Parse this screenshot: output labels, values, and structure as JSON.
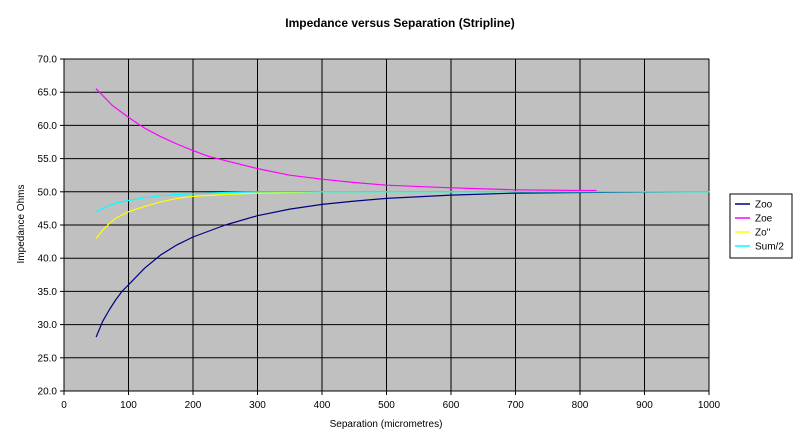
{
  "chart_data": {
    "type": "line",
    "title": "Impedance versus Separation (Stripline)",
    "xlabel": "Separation (micrometres)",
    "ylabel": "Impedance Ohms",
    "xlim": [
      0,
      1000
    ],
    "ylim": [
      20,
      70
    ],
    "x_ticks": [
      0,
      100,
      200,
      300,
      400,
      500,
      600,
      700,
      800,
      900,
      1000
    ],
    "y_ticks": [
      "20.0",
      "25.0",
      "30.0",
      "35.0",
      "40.0",
      "45.0",
      "50.0",
      "55.0",
      "60.0",
      "65.0",
      "70.0"
    ],
    "grid": true,
    "plot_background": "#c0c0c0",
    "legend_position": "right",
    "series": [
      {
        "name": "Zoo",
        "color": "#000080",
        "x": [
          50,
          60,
          70,
          80,
          90,
          100,
          125,
          150,
          175,
          200,
          250,
          300,
          350,
          400,
          450,
          500,
          600,
          700,
          800,
          1000
        ],
        "y": [
          28.2,
          30.5,
          32.2,
          33.7,
          35.0,
          36.0,
          38.5,
          40.5,
          42.0,
          43.2,
          45.0,
          46.4,
          47.4,
          48.1,
          48.6,
          49.0,
          49.5,
          49.8,
          49.9,
          50.0
        ]
      },
      {
        "name": "Zoe",
        "color": "#ff00ff",
        "x": [
          50,
          60,
          75,
          100,
          125,
          150,
          175,
          200,
          225,
          250,
          300,
          350,
          400,
          450,
          500,
          600,
          700,
          800,
          825
        ],
        "y": [
          65.5,
          64.5,
          63.0,
          61.2,
          59.6,
          58.3,
          57.2,
          56.2,
          55.3,
          54.7,
          53.5,
          52.5,
          51.9,
          51.4,
          51.0,
          50.6,
          50.3,
          50.2,
          50.2
        ]
      },
      {
        "name": "Zo''",
        "color": "#ffff00",
        "x": [
          50,
          60,
          70,
          80,
          90,
          100,
          125,
          150,
          175,
          200,
          250,
          300,
          350,
          400,
          450,
          500,
          600,
          700,
          800,
          1000
        ],
        "y": [
          43.0,
          44.2,
          45.2,
          46.0,
          46.5,
          47.0,
          47.8,
          48.5,
          49.0,
          49.3,
          49.6,
          49.8,
          49.9,
          50.0,
          50.0,
          50.0,
          50.0,
          50.0,
          50.0,
          50.0
        ]
      },
      {
        "name": "Sum/2",
        "color": "#00ffff",
        "x": [
          50,
          60,
          70,
          80,
          90,
          100,
          125,
          150,
          175,
          200,
          250,
          300,
          350,
          400,
          450,
          500,
          600,
          700,
          800,
          1000
        ],
        "y": [
          47.0,
          47.5,
          47.9,
          48.3,
          48.5,
          48.7,
          49.1,
          49.4,
          49.6,
          49.7,
          49.9,
          50.0,
          50.0,
          50.0,
          50.0,
          50.0,
          50.0,
          50.0,
          50.0,
          50.0
        ]
      }
    ]
  }
}
